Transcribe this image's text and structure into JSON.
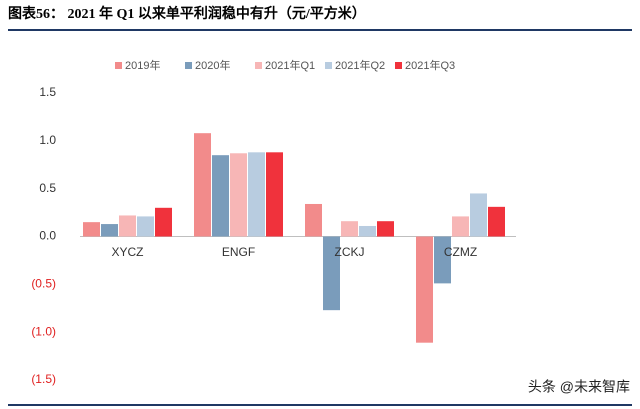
{
  "chart_data": {
    "type": "bar",
    "title": "图表56：  2021 年 Q1 以来单平利润稳中有升（元/平方米）",
    "watermark": "头条 @未来智库",
    "categories": [
      "XYCZ",
      "ENGF",
      "ZCKJ",
      "CZMZ"
    ],
    "series": [
      {
        "name": "2019年",
        "color": "#f28b8b",
        "values": [
          0.15,
          1.08,
          0.34,
          -1.11
        ]
      },
      {
        "name": "2020年",
        "color": "#7a9cbb",
        "values": [
          0.13,
          0.85,
          -0.77,
          -0.49
        ]
      },
      {
        "name": "2021年Q1",
        "color": "#f7b6b6",
        "values": [
          0.22,
          0.87,
          0.16,
          0.21
        ]
      },
      {
        "name": "2021年Q2",
        "color": "#b8cce0",
        "values": [
          0.21,
          0.88,
          0.11,
          0.45
        ]
      },
      {
        "name": "2021年Q3",
        "color": "#f0323c",
        "values": [
          0.3,
          0.88,
          0.16,
          0.31
        ]
      }
    ],
    "ylim": [
      -1.5,
      1.5
    ],
    "yticks": [
      1.5,
      {
        "value": 1.0,
        "label": "1.0"
      },
      0.5,
      {
        "value": 0,
        "label": "0.0"
      },
      {
        "value": -0.5,
        "label": "(0.5)"
      },
      {
        "value": -1.0,
        "label": "(1.0)"
      },
      {
        "value": -1.5,
        "label": "(1.5)"
      }
    ],
    "negative_tick_color": "#e02020",
    "grid": false
  }
}
